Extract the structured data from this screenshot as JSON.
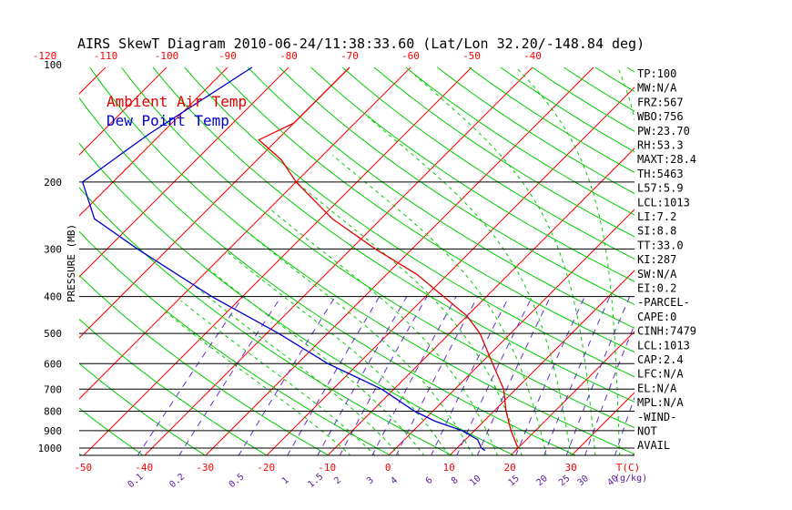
{
  "title": "AIRS SkewT Diagram 2010-06-24/11:38:33.60 (Lat/Lon 32.20/-148.84 deg)",
  "colors": {
    "isotherm": "#ff0000",
    "dry_adiabat": "#00cc00",
    "moist_adiabat": "#00cc00",
    "mixing_ratio": "#6a2bd1",
    "temperature": "#e00000",
    "dewpoint": "#0000cc",
    "isobar": "#000000"
  },
  "chart_data": {
    "type": "line",
    "subtype": "skew-t log-p",
    "title": "AIRS SkewT Diagram 2010-06-24/11:38:33.60 (Lat/Lon 32.20/-148.84 deg)",
    "ylabel": "PRESSURE (MB)",
    "xlabel": "T(C)",
    "mixing_ratio_label": "(g/kg)",
    "y_scale": "log",
    "ylim": [
      1050,
      100
    ],
    "pressure_ticks": [
      100,
      200,
      300,
      400,
      500,
      600,
      700,
      800,
      900,
      1000
    ],
    "isobar_lines": [
      200,
      300,
      400,
      500,
      600,
      700,
      800,
      900,
      1000
    ],
    "top_temp_ticks": [
      "-120",
      "-110",
      "-100",
      "-90",
      "-80",
      "-70",
      "-60",
      "-50",
      "-40"
    ],
    "bottom_temp_ticks": [
      "-50",
      "-40",
      "-30",
      "-20",
      "-10",
      "0",
      "10",
      "20",
      "30"
    ],
    "mixing_ratio_ticks": [
      "0.1",
      "0.2",
      "0.5",
      "1",
      "1.5",
      "2",
      "3",
      "4",
      "6",
      "8",
      "10",
      "15",
      "20",
      "25",
      "30",
      "40"
    ],
    "legend": [
      {
        "label": "Ambient Air Temp",
        "color": "#e00000"
      },
      {
        "label": "Dew Point Temp",
        "color": "#0000cc"
      }
    ],
    "legend_position": "top-left",
    "series": [
      {
        "name": "Ambient Air Temp",
        "color": "#e00000",
        "points": [
          {
            "p": 100,
            "t": -70
          },
          {
            "p": 120,
            "t": -70
          },
          {
            "p": 140,
            "t": -70
          },
          {
            "p": 155,
            "t": -73
          },
          {
            "p": 175,
            "t": -66
          },
          {
            "p": 200,
            "t": -60
          },
          {
            "p": 250,
            "t": -48
          },
          {
            "p": 300,
            "t": -36
          },
          {
            "p": 350,
            "t": -25
          },
          {
            "p": 400,
            "t": -17
          },
          {
            "p": 450,
            "t": -10
          },
          {
            "p": 500,
            "t": -5
          },
          {
            "p": 600,
            "t": 2
          },
          {
            "p": 700,
            "t": 8
          },
          {
            "p": 800,
            "t": 12
          },
          {
            "p": 900,
            "t": 16
          },
          {
            "p": 1000,
            "t": 20
          },
          {
            "p": 1015,
            "t": 20
          }
        ]
      },
      {
        "name": "Dew Point Temp",
        "color": "#0000cc",
        "points": [
          {
            "p": 100,
            "t": -86
          },
          {
            "p": 150,
            "t": -92
          },
          {
            "p": 200,
            "t": -95
          },
          {
            "p": 250,
            "t": -87
          },
          {
            "p": 300,
            "t": -75
          },
          {
            "p": 400,
            "t": -55
          },
          {
            "p": 500,
            "t": -38
          },
          {
            "p": 600,
            "t": -25
          },
          {
            "p": 700,
            "t": -12
          },
          {
            "p": 800,
            "t": -3
          },
          {
            "p": 850,
            "t": 2
          },
          {
            "p": 900,
            "t": 8
          },
          {
            "p": 950,
            "t": 12
          },
          {
            "p": 1000,
            "t": 14
          },
          {
            "p": 1015,
            "t": 15
          }
        ]
      }
    ]
  },
  "indices": [
    "TP:100",
    "MW:N/A",
    "FRZ:567",
    "WBO:756",
    "PW:23.70",
    "RH:53.3",
    "MAXT:28.4",
    "TH:5463",
    "L57:5.9",
    "LCL:1013",
    "LI:7.2",
    "SI:8.8",
    "TT:33.0",
    "KI:287",
    "SW:N/A",
    "EI:0.2",
    "-PARCEL-",
    "CAPE:0",
    "CINH:7479",
    "LCL:1013",
    "CAP:2.4",
    "LFC:N/A",
    "EL:N/A",
    "MPL:N/A",
    "-WIND-",
    "NOT",
    "AVAIL"
  ]
}
